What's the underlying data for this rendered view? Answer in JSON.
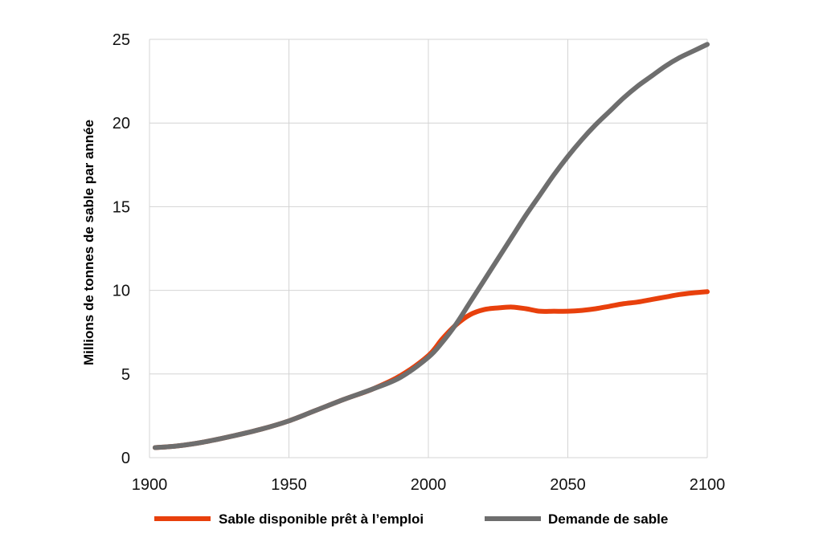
{
  "chart_data": {
    "type": "line",
    "title": "",
    "xlabel": "",
    "ylabel": "Millions de tonnes de sable par année",
    "xlim": [
      1900,
      2100
    ],
    "ylim": [
      0,
      25
    ],
    "x_ticks": [
      1900,
      1950,
      2000,
      2050,
      2100
    ],
    "y_ticks": [
      0,
      5,
      10,
      15,
      20,
      25
    ],
    "grid": true,
    "legend_position": "bottom",
    "series": [
      {
        "name": "Sable disponible prêt à l’emploi",
        "color": "#e8400c",
        "x": [
          1902,
          1910,
          1920,
          1930,
          1940,
          1950,
          1960,
          1970,
          1980,
          1990,
          2000,
          2005,
          2010,
          2015,
          2020,
          2025,
          2030,
          2035,
          2040,
          2045,
          2050,
          2055,
          2060,
          2065,
          2070,
          2075,
          2080,
          2085,
          2090,
          2095,
          2100
        ],
        "y": [
          0.6,
          0.7,
          0.95,
          1.3,
          1.7,
          2.2,
          2.85,
          3.5,
          4.1,
          4.9,
          6.1,
          7.1,
          7.95,
          8.55,
          8.85,
          8.95,
          9.0,
          8.9,
          8.75,
          8.75,
          8.75,
          8.8,
          8.9,
          9.05,
          9.2,
          9.3,
          9.45,
          9.6,
          9.75,
          9.85,
          9.92
        ]
      },
      {
        "name": "Demande de sable",
        "color": "#6e6e6e",
        "x": [
          1902,
          1910,
          1920,
          1930,
          1940,
          1950,
          1960,
          1970,
          1980,
          1990,
          2000,
          2005,
          2010,
          2015,
          2020,
          2025,
          2030,
          2035,
          2040,
          2045,
          2050,
          2055,
          2060,
          2065,
          2070,
          2075,
          2080,
          2085,
          2090,
          2095,
          2100
        ],
        "y": [
          0.6,
          0.7,
          0.95,
          1.3,
          1.7,
          2.2,
          2.85,
          3.5,
          4.1,
          4.8,
          6.0,
          6.9,
          8.0,
          9.3,
          10.6,
          11.9,
          13.2,
          14.5,
          15.7,
          16.9,
          18.0,
          19.0,
          19.9,
          20.7,
          21.5,
          22.2,
          22.8,
          23.4,
          23.9,
          24.3,
          24.7
        ]
      }
    ]
  }
}
